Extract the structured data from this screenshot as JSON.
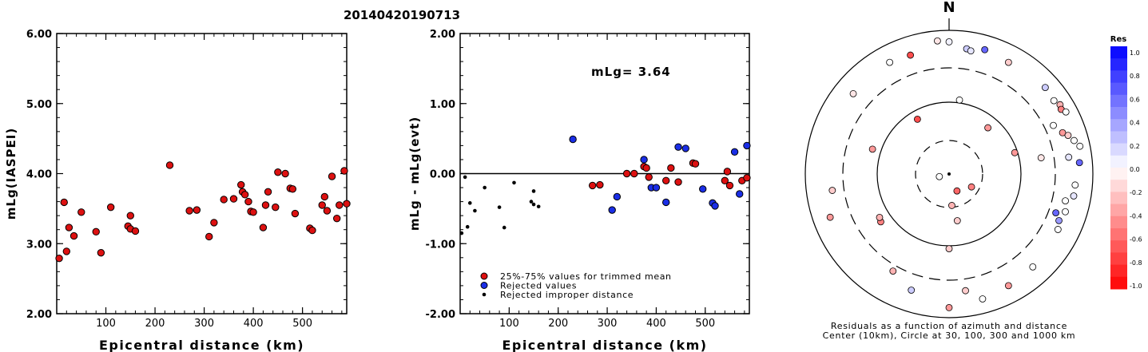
{
  "event_id": "20140420190713",
  "chart_data": [
    {
      "type": "scatter",
      "title": "",
      "xlabel": "Epicentral distance (km)",
      "ylabel": "mLg(IASPEI)",
      "xlim": [
        0,
        590
      ],
      "ylim": [
        2.0,
        6.0
      ],
      "x_ticks": [
        100,
        200,
        300,
        400,
        500
      ],
      "y_ticks": [
        "2.00",
        "3.00",
        "4.00",
        "5.00",
        "6.00"
      ],
      "marker_color": "#dd1111",
      "series": [
        {
          "points": [
            [
              5,
              2.79
            ],
            [
              15,
              3.59
            ],
            [
              20,
              2.89
            ],
            [
              25,
              3.23
            ],
            [
              35,
              3.11
            ],
            [
              50,
              3.45
            ],
            [
              80,
              3.17
            ],
            [
              90,
              2.87
            ],
            [
              110,
              3.52
            ],
            [
              145,
              3.25
            ],
            [
              150,
              3.21
            ],
            [
              150,
              3.4
            ],
            [
              160,
              3.18
            ],
            [
              230,
              4.12
            ],
            [
              270,
              3.47
            ],
            [
              285,
              3.48
            ],
            [
              310,
              3.1
            ],
            [
              320,
              3.3
            ],
            [
              340,
              3.63
            ],
            [
              360,
              3.64
            ],
            [
              375,
              3.84
            ],
            [
              378,
              3.74
            ],
            [
              383,
              3.7
            ],
            [
              390,
              3.6
            ],
            [
              395,
              3.46
            ],
            [
              400,
              3.45
            ],
            [
              420,
              3.23
            ],
            [
              425,
              3.55
            ],
            [
              430,
              3.74
            ],
            [
              445,
              3.52
            ],
            [
              450,
              4.02
            ],
            [
              465,
              4.0
            ],
            [
              475,
              3.79
            ],
            [
              480,
              3.78
            ],
            [
              485,
              3.43
            ],
            [
              515,
              3.22
            ],
            [
              520,
              3.19
            ],
            [
              540,
              3.55
            ],
            [
              545,
              3.67
            ],
            [
              550,
              3.47
            ],
            [
              560,
              3.96
            ],
            [
              570,
              3.36
            ],
            [
              575,
              3.55
            ],
            [
              585,
              4.04
            ],
            [
              590,
              3.57
            ]
          ]
        }
      ]
    },
    {
      "type": "scatter",
      "title": "",
      "xlabel": "Epicentral distance (km)",
      "ylabel": "mLg - mLg(evt)",
      "xlim": [
        0,
        590
      ],
      "ylim": [
        -2.0,
        2.0
      ],
      "x_ticks": [
        100,
        200,
        300,
        400,
        500
      ],
      "y_ticks": [
        "-2.00",
        "-1.00",
        "0.00",
        "1.00",
        "2.00"
      ],
      "annotation": "mLg= 3.64",
      "legend": [
        {
          "label": "25%-75% values for trimmed mean",
          "color": "#dd1111"
        },
        {
          "label": "Rejected values",
          "color": "#1a2ee6"
        },
        {
          "label": "Rejected improper distance",
          "color": "#000000"
        }
      ],
      "series": [
        {
          "name": "25%-75% values for trimmed mean",
          "color": "#dd1111",
          "points": [
            [
              270,
              -0.17
            ],
            [
              285,
              -0.16
            ],
            [
              340,
              0.0
            ],
            [
              355,
              0.0
            ],
            [
              375,
              0.1
            ],
            [
              380,
              0.08
            ],
            [
              385,
              -0.05
            ],
            [
              420,
              -0.1
            ],
            [
              430,
              0.08
            ],
            [
              445,
              -0.12
            ],
            [
              475,
              0.15
            ],
            [
              480,
              0.14
            ],
            [
              540,
              -0.1
            ],
            [
              545,
              0.03
            ],
            [
              550,
              -0.17
            ],
            [
              575,
              -0.1
            ],
            [
              585,
              -0.06
            ]
          ]
        },
        {
          "name": "Rejected values",
          "color": "#1a2ee6",
          "points": [
            [
              230,
              0.49
            ],
            [
              310,
              -0.52
            ],
            [
              320,
              -0.33
            ],
            [
              375,
              0.2
            ],
            [
              390,
              -0.2
            ],
            [
              400,
              -0.2
            ],
            [
              420,
              -0.41
            ],
            [
              445,
              0.38
            ],
            [
              460,
              0.36
            ],
            [
              495,
              -0.22
            ],
            [
              515,
              -0.42
            ],
            [
              520,
              -0.46
            ],
            [
              560,
              0.31
            ],
            [
              570,
              -0.29
            ],
            [
              585,
              0.4
            ]
          ]
        },
        {
          "name": "Rejected improper distance",
          "color": "#000000",
          "points": [
            [
              3,
              -0.85
            ],
            [
              10,
              -0.05
            ],
            [
              15,
              -0.76
            ],
            [
              20,
              -0.42
            ],
            [
              30,
              -0.53
            ],
            [
              50,
              -0.2
            ],
            [
              80,
              -0.48
            ],
            [
              90,
              -0.77
            ],
            [
              110,
              -0.13
            ],
            [
              145,
              -0.4
            ],
            [
              150,
              -0.25
            ],
            [
              150,
              -0.44
            ],
            [
              160,
              -0.47
            ]
          ]
        }
      ]
    },
    {
      "type": "polar_scatter",
      "north_label": "N",
      "caption_line1": "Residuals as a function of azimuth and distance",
      "caption_line2": "Center (10km), Circle at 30, 100, 300 and 1000 km",
      "rings_km": [
        10,
        30,
        100,
        300,
        1000
      ],
      "colorbar": {
        "title": "Res",
        "tick_labels": [
          "1.0",
          "0.8",
          "0.6",
          "0.4",
          "0.2",
          "0.0",
          "-0.2",
          "-0.4",
          "-0.6",
          "-0.8",
          "-1.0"
        ],
        "range": [
          -1.0,
          1.0
        ],
        "positive_color": "#0000ff",
        "negative_color": "#ff0000"
      },
      "points": [
        {
          "az": 355,
          "r": 0.93,
          "res": -0.1
        },
        {
          "az": 0,
          "r": 0.92,
          "res": 0.05
        },
        {
          "az": 8,
          "r": 0.88,
          "res": 0.2
        },
        {
          "az": 10,
          "r": 0.87,
          "res": 0.1
        },
        {
          "az": 16,
          "r": 0.9,
          "res": 0.6
        },
        {
          "az": 28,
          "r": 0.88,
          "res": -0.2
        },
        {
          "az": 342,
          "r": 0.87,
          "res": -0.7
        },
        {
          "az": 332,
          "r": 0.88,
          "res": 0.0
        },
        {
          "az": 310,
          "r": 0.87,
          "res": -0.1
        },
        {
          "az": 48,
          "r": 0.9,
          "res": 0.2
        },
        {
          "az": 55,
          "r": 0.89,
          "res": 0.0
        },
        {
          "az": 58,
          "r": 0.91,
          "res": -0.3
        },
        {
          "az": 60,
          "r": 0.9,
          "res": -0.5
        },
        {
          "az": 62,
          "r": 0.92,
          "res": 0.0
        },
        {
          "az": 65,
          "r": 0.8,
          "res": 0.0
        },
        {
          "az": 70,
          "r": 0.84,
          "res": -0.4
        },
        {
          "az": 72,
          "r": 0.87,
          "res": -0.2
        },
        {
          "az": 75,
          "r": 0.9,
          "res": 0.0
        },
        {
          "az": 78,
          "r": 0.93,
          "res": 0.0
        },
        {
          "az": 82,
          "r": 0.84,
          "res": 0.1
        },
        {
          "az": 85,
          "r": 0.91,
          "res": 0.6
        },
        {
          "az": 80,
          "r": 0.65,
          "res": -0.1
        },
        {
          "az": 72,
          "r": 0.48,
          "res": -0.4
        },
        {
          "az": 40,
          "r": 0.42,
          "res": -0.4
        },
        {
          "az": 8,
          "r": 0.52,
          "res": 0.0
        },
        {
          "az": 330,
          "r": 0.44,
          "res": -0.7
        },
        {
          "az": 288,
          "r": 0.56,
          "res": -0.4
        },
        {
          "az": 95,
          "r": 0.88,
          "res": 0.0
        },
        {
          "az": 100,
          "r": 0.88,
          "res": 0.1
        },
        {
          "az": 103,
          "r": 0.83,
          "res": 0.0
        },
        {
          "az": 108,
          "r": 0.85,
          "res": 0.0
        },
        {
          "az": 110,
          "r": 0.79,
          "res": 0.6
        },
        {
          "az": 113,
          "r": 0.83,
          "res": 0.4
        },
        {
          "az": 117,
          "r": 0.85,
          "res": 0.0
        },
        {
          "az": 138,
          "r": 0.87,
          "res": 0.0
        },
        {
          "az": 152,
          "r": 0.88,
          "res": -0.4
        },
        {
          "az": 172,
          "r": 0.82,
          "res": -0.2
        },
        {
          "az": 165,
          "r": 0.9,
          "res": 0.0
        },
        {
          "az": 180,
          "r": 0.93,
          "res": -0.4
        },
        {
          "az": 198,
          "r": 0.85,
          "res": 0.2
        },
        {
          "az": 210,
          "r": 0.78,
          "res": -0.3
        },
        {
          "az": 235,
          "r": 0.58,
          "res": -0.5
        },
        {
          "az": 238,
          "r": 0.57,
          "res": -0.3
        },
        {
          "az": 262,
          "r": 0.82,
          "res": -0.2
        },
        {
          "az": 250,
          "r": 0.88,
          "res": -0.4
        },
        {
          "az": 175,
          "r": 0.22,
          "res": -0.3
        },
        {
          "az": 170,
          "r": 0.33,
          "res": -0.2
        },
        {
          "az": 180,
          "r": 0.52,
          "res": -0.2
        },
        {
          "az": 155,
          "r": 0.13,
          "res": -0.6
        },
        {
          "az": 120,
          "r": 0.18,
          "res": -0.5
        },
        {
          "az": 255,
          "r": 0.07,
          "res": 0.0
        }
      ]
    }
  ]
}
